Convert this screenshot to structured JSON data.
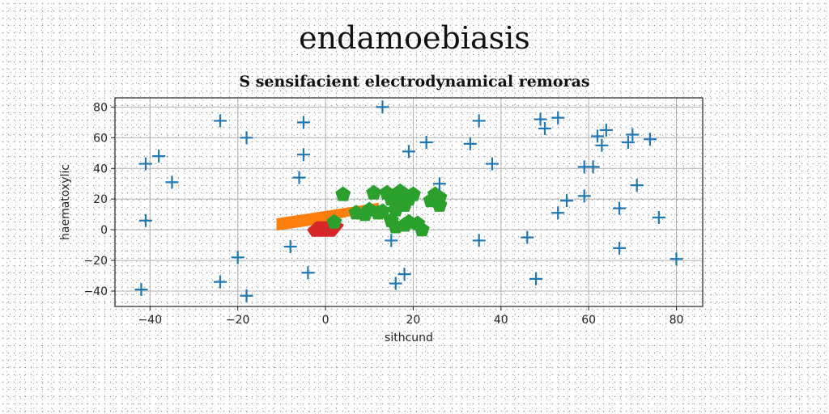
{
  "suptitle": "endamoebiasis",
  "chart_data": {
    "type": "scatter",
    "title": "S sensifacient electrodynamical remoras",
    "xlabel": "sithcund",
    "ylabel": "haematoxylic",
    "xlim": [
      -48,
      86
    ],
    "ylim": [
      -50,
      86
    ],
    "xticks": [
      -40,
      -20,
      0,
      20,
      40,
      60,
      80
    ],
    "yticks": [
      -40,
      -20,
      0,
      20,
      40,
      60,
      80
    ],
    "xtick_labels": [
      "−40",
      "−20",
      "0",
      "20",
      "40",
      "60",
      "80"
    ],
    "ytick_labels": [
      "−40",
      "−20",
      "0",
      "20",
      "40",
      "60",
      "80"
    ],
    "grid": true,
    "series": [
      {
        "marker": "plus",
        "color": "#1f77b4",
        "points": [
          [
            -41,
            43
          ],
          [
            -38,
            48
          ],
          [
            -35,
            31
          ],
          [
            -41,
            6
          ],
          [
            -42,
            -39
          ],
          [
            -24,
            71
          ],
          [
            -18,
            60
          ],
          [
            -24,
            -34
          ],
          [
            -20,
            -18
          ],
          [
            -18,
            -43
          ],
          [
            -5,
            70
          ],
          [
            -5,
            49
          ],
          [
            -6,
            34
          ],
          [
            -8,
            -11
          ],
          [
            -4,
            -28
          ],
          [
            13,
            80
          ],
          [
            19,
            51
          ],
          [
            23,
            57
          ],
          [
            26,
            30
          ],
          [
            15,
            -7
          ],
          [
            16,
            -35
          ],
          [
            18,
            -29
          ],
          [
            33,
            56
          ],
          [
            35,
            71
          ],
          [
            38,
            43
          ],
          [
            35,
            -7
          ],
          [
            49,
            72
          ],
          [
            50,
            66
          ],
          [
            53,
            73
          ],
          [
            46,
            -5
          ],
          [
            48,
            -32
          ],
          [
            53,
            11
          ],
          [
            55,
            19
          ],
          [
            59,
            41
          ],
          [
            61,
            41
          ],
          [
            59,
            22
          ],
          [
            62,
            61
          ],
          [
            63,
            55
          ],
          [
            64,
            65
          ],
          [
            67,
            14
          ],
          [
            67,
            -12
          ],
          [
            69,
            57
          ],
          [
            70,
            62
          ],
          [
            71,
            29
          ],
          [
            74,
            59
          ],
          [
            76,
            8
          ],
          [
            80,
            -19
          ]
        ]
      },
      {
        "marker": "pentagon",
        "color": "#2ca02c",
        "points": [
          [
            4,
            23
          ],
          [
            2,
            5
          ],
          [
            7,
            11
          ],
          [
            9,
            10
          ],
          [
            10,
            13
          ],
          [
            11,
            24
          ],
          [
            12,
            11
          ],
          [
            13,
            12
          ],
          [
            14,
            24
          ],
          [
            15,
            20
          ],
          [
            16,
            22
          ],
          [
            16,
            13
          ],
          [
            17,
            25
          ],
          [
            18,
            23
          ],
          [
            18,
            16
          ],
          [
            19,
            20
          ],
          [
            20,
            23
          ],
          [
            15,
            6
          ],
          [
            16,
            2
          ],
          [
            18,
            3
          ],
          [
            19,
            5
          ],
          [
            21,
            4
          ],
          [
            22,
            0
          ],
          [
            24,
            19
          ],
          [
            25,
            23
          ],
          [
            26,
            21
          ],
          [
            26,
            16
          ]
        ]
      },
      {
        "marker": "polygon",
        "color": "#ff7f0e",
        "points": [
          [
            -11,
            0
          ],
          [
            -11,
            7
          ],
          [
            12,
            17
          ],
          [
            11,
            13
          ],
          [
            -4,
            3
          ]
        ]
      },
      {
        "marker": "polygon",
        "color": "#d62728",
        "points": [
          [
            -4,
            0
          ],
          [
            -2,
            5
          ],
          [
            3,
            5
          ],
          [
            4,
            3
          ],
          [
            2,
            -4
          ],
          [
            -3,
            -4
          ]
        ]
      }
    ]
  }
}
